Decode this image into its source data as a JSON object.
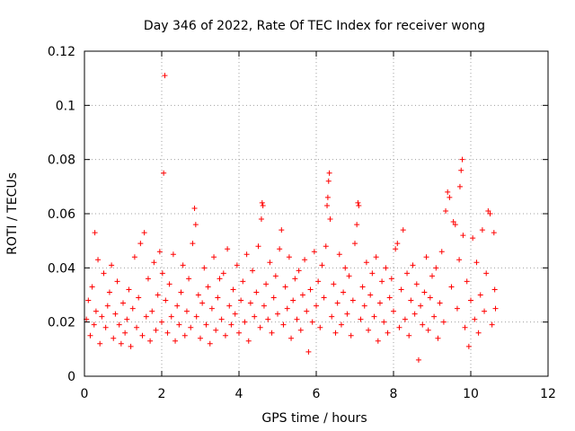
{
  "chart_data": {
    "type": "scatter",
    "title": "Day 346 of 2022, Rate Of TEC Index for receiver wong",
    "xlabel": "GPS time / hours",
    "ylabel": "ROTI / TECUs",
    "xlim": [
      0,
      12
    ],
    "ylim": [
      0,
      0.12
    ],
    "x_ticks": [
      "0",
      "2",
      "4",
      "6",
      "8",
      "10",
      "12"
    ],
    "y_ticks": [
      "0",
      "0.02",
      "0.04",
      "0.06",
      "0.08",
      "0.1",
      "0.12"
    ],
    "grid": true,
    "marker": "plus",
    "color": "#ff0000",
    "series": [
      {
        "points": [
          [
            0.05,
            0.021
          ],
          [
            0.1,
            0.028
          ],
          [
            0.15,
            0.015
          ],
          [
            0.2,
            0.033
          ],
          [
            0.25,
            0.019
          ],
          [
            0.27,
            0.053
          ],
          [
            0.3,
            0.024
          ],
          [
            0.35,
            0.043
          ],
          [
            0.4,
            0.012
          ],
          [
            0.45,
            0.022
          ],
          [
            0.5,
            0.038
          ],
          [
            0.55,
            0.018
          ],
          [
            0.6,
            0.026
          ],
          [
            0.65,
            0.031
          ],
          [
            0.7,
            0.041
          ],
          [
            0.75,
            0.014
          ],
          [
            0.8,
            0.023
          ],
          [
            0.85,
            0.035
          ],
          [
            0.9,
            0.019
          ],
          [
            0.95,
            0.012
          ],
          [
            1.0,
            0.027
          ],
          [
            1.05,
            0.016
          ],
          [
            1.1,
            0.021
          ],
          [
            1.15,
            0.032
          ],
          [
            1.2,
            0.011
          ],
          [
            1.25,
            0.025
          ],
          [
            1.3,
            0.044
          ],
          [
            1.35,
            0.018
          ],
          [
            1.4,
            0.029
          ],
          [
            1.45,
            0.049
          ],
          [
            1.5,
            0.015
          ],
          [
            1.55,
            0.053
          ],
          [
            1.6,
            0.022
          ],
          [
            1.65,
            0.036
          ],
          [
            1.7,
            0.013
          ],
          [
            1.75,
            0.024
          ],
          [
            1.8,
            0.042
          ],
          [
            1.85,
            0.017
          ],
          [
            1.9,
            0.03
          ],
          [
            1.95,
            0.046
          ],
          [
            2.0,
            0.02
          ],
          [
            2.02,
            0.038
          ],
          [
            2.05,
            0.075
          ],
          [
            2.08,
            0.111
          ],
          [
            2.1,
            0.028
          ],
          [
            2.15,
            0.016
          ],
          [
            2.2,
            0.034
          ],
          [
            2.25,
            0.022
          ],
          [
            2.3,
            0.045
          ],
          [
            2.35,
            0.013
          ],
          [
            2.4,
            0.026
          ],
          [
            2.45,
            0.019
          ],
          [
            2.5,
            0.031
          ],
          [
            2.55,
            0.041
          ],
          [
            2.6,
            0.015
          ],
          [
            2.65,
            0.024
          ],
          [
            2.7,
            0.036
          ],
          [
            2.75,
            0.018
          ],
          [
            2.8,
            0.049
          ],
          [
            2.85,
            0.062
          ],
          [
            2.88,
            0.056
          ],
          [
            2.9,
            0.022
          ],
          [
            2.95,
            0.03
          ],
          [
            3.0,
            0.014
          ],
          [
            3.05,
            0.027
          ],
          [
            3.1,
            0.04
          ],
          [
            3.15,
            0.019
          ],
          [
            3.2,
            0.033
          ],
          [
            3.25,
            0.012
          ],
          [
            3.3,
            0.025
          ],
          [
            3.35,
            0.044
          ],
          [
            3.4,
            0.017
          ],
          [
            3.45,
            0.029
          ],
          [
            3.5,
            0.036
          ],
          [
            3.55,
            0.021
          ],
          [
            3.6,
            0.038
          ],
          [
            3.65,
            0.015
          ],
          [
            3.7,
            0.047
          ],
          [
            3.75,
            0.026
          ],
          [
            3.8,
            0.019
          ],
          [
            3.85,
            0.032
          ],
          [
            3.9,
            0.023
          ],
          [
            3.95,
            0.041
          ],
          [
            4.0,
            0.016
          ],
          [
            4.05,
            0.028
          ],
          [
            4.1,
            0.035
          ],
          [
            4.15,
            0.02
          ],
          [
            4.2,
            0.045
          ],
          [
            4.25,
            0.013
          ],
          [
            4.3,
            0.027
          ],
          [
            4.35,
            0.039
          ],
          [
            4.4,
            0.022
          ],
          [
            4.45,
            0.031
          ],
          [
            4.5,
            0.048
          ],
          [
            4.55,
            0.018
          ],
          [
            4.58,
            0.058
          ],
          [
            4.6,
            0.064
          ],
          [
            4.62,
            0.063
          ],
          [
            4.65,
            0.026
          ],
          [
            4.7,
            0.034
          ],
          [
            4.75,
            0.021
          ],
          [
            4.8,
            0.042
          ],
          [
            4.85,
            0.016
          ],
          [
            4.9,
            0.029
          ],
          [
            4.95,
            0.037
          ],
          [
            5.0,
            0.023
          ],
          [
            5.05,
            0.047
          ],
          [
            5.1,
            0.054
          ],
          [
            5.15,
            0.019
          ],
          [
            5.2,
            0.033
          ],
          [
            5.25,
            0.025
          ],
          [
            5.3,
            0.044
          ],
          [
            5.35,
            0.014
          ],
          [
            5.4,
            0.028
          ],
          [
            5.45,
            0.036
          ],
          [
            5.5,
            0.021
          ],
          [
            5.55,
            0.039
          ],
          [
            5.6,
            0.017
          ],
          [
            5.65,
            0.03
          ],
          [
            5.7,
            0.043
          ],
          [
            5.75,
            0.024
          ],
          [
            5.8,
            0.009
          ],
          [
            5.85,
            0.032
          ],
          [
            5.9,
            0.02
          ],
          [
            5.95,
            0.046
          ],
          [
            6.0,
            0.026
          ],
          [
            6.05,
            0.035
          ],
          [
            6.1,
            0.018
          ],
          [
            6.15,
            0.041
          ],
          [
            6.2,
            0.029
          ],
          [
            6.25,
            0.048
          ],
          [
            6.28,
            0.063
          ],
          [
            6.3,
            0.066
          ],
          [
            6.32,
            0.072
          ],
          [
            6.34,
            0.075
          ],
          [
            6.36,
            0.058
          ],
          [
            6.4,
            0.022
          ],
          [
            6.45,
            0.034
          ],
          [
            6.5,
            0.016
          ],
          [
            6.55,
            0.027
          ],
          [
            6.6,
            0.045
          ],
          [
            6.65,
            0.019
          ],
          [
            6.7,
            0.031
          ],
          [
            6.75,
            0.04
          ],
          [
            6.8,
            0.023
          ],
          [
            6.85,
            0.037
          ],
          [
            6.9,
            0.015
          ],
          [
            6.95,
            0.028
          ],
          [
            7.0,
            0.049
          ],
          [
            7.05,
            0.056
          ],
          [
            7.08,
            0.064
          ],
          [
            7.1,
            0.063
          ],
          [
            7.15,
            0.021
          ],
          [
            7.2,
            0.033
          ],
          [
            7.25,
            0.026
          ],
          [
            7.3,
            0.042
          ],
          [
            7.35,
            0.017
          ],
          [
            7.4,
            0.03
          ],
          [
            7.45,
            0.038
          ],
          [
            7.5,
            0.022
          ],
          [
            7.55,
            0.044
          ],
          [
            7.6,
            0.013
          ],
          [
            7.65,
            0.027
          ],
          [
            7.7,
            0.035
          ],
          [
            7.75,
            0.02
          ],
          [
            7.8,
            0.04
          ],
          [
            7.85,
            0.016
          ],
          [
            7.9,
            0.029
          ],
          [
            7.95,
            0.036
          ],
          [
            8.0,
            0.024
          ],
          [
            8.05,
            0.047
          ],
          [
            8.1,
            0.049
          ],
          [
            8.15,
            0.018
          ],
          [
            8.2,
            0.032
          ],
          [
            8.25,
            0.054
          ],
          [
            8.3,
            0.021
          ],
          [
            8.35,
            0.038
          ],
          [
            8.4,
            0.015
          ],
          [
            8.45,
            0.028
          ],
          [
            8.5,
            0.041
          ],
          [
            8.55,
            0.023
          ],
          [
            8.6,
            0.034
          ],
          [
            8.65,
            0.006
          ],
          [
            8.7,
            0.026
          ],
          [
            8.75,
            0.019
          ],
          [
            8.8,
            0.031
          ],
          [
            8.85,
            0.044
          ],
          [
            8.9,
            0.017
          ],
          [
            8.95,
            0.029
          ],
          [
            9.0,
            0.037
          ],
          [
            9.05,
            0.022
          ],
          [
            9.1,
            0.04
          ],
          [
            9.15,
            0.014
          ],
          [
            9.2,
            0.027
          ],
          [
            9.25,
            0.046
          ],
          [
            9.3,
            0.02
          ],
          [
            9.35,
            0.061
          ],
          [
            9.4,
            0.068
          ],
          [
            9.45,
            0.066
          ],
          [
            9.5,
            0.033
          ],
          [
            9.55,
            0.057
          ],
          [
            9.6,
            0.056
          ],
          [
            9.65,
            0.025
          ],
          [
            9.7,
            0.043
          ],
          [
            9.72,
            0.07
          ],
          [
            9.75,
            0.076
          ],
          [
            9.78,
            0.08
          ],
          [
            9.8,
            0.052
          ],
          [
            9.85,
            0.018
          ],
          [
            9.9,
            0.035
          ],
          [
            9.95,
            0.011
          ],
          [
            10.0,
            0.028
          ],
          [
            10.05,
            0.051
          ],
          [
            10.1,
            0.021
          ],
          [
            10.15,
            0.042
          ],
          [
            10.2,
            0.016
          ],
          [
            10.25,
            0.03
          ],
          [
            10.3,
            0.054
          ],
          [
            10.35,
            0.024
          ],
          [
            10.4,
            0.038
          ],
          [
            10.45,
            0.061
          ],
          [
            10.5,
            0.06
          ],
          [
            10.55,
            0.019
          ],
          [
            10.6,
            0.053
          ],
          [
            10.62,
            0.032
          ],
          [
            10.64,
            0.025
          ]
        ]
      }
    ]
  }
}
